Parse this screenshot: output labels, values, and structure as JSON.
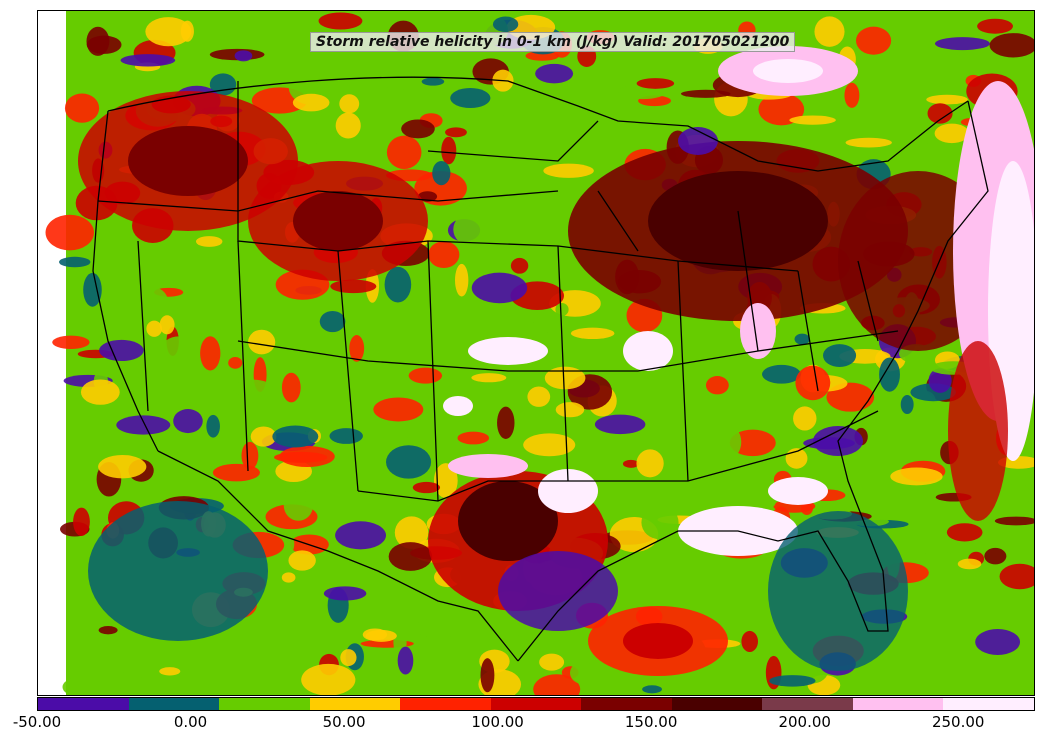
{
  "title": "Storm relative helicity in 0-1 km (J/kg) Valid: 201705021200",
  "colorbar": {
    "colors": [
      "#4b0ca8",
      "#056070",
      "#66cc00",
      "#ffcc00",
      "#ff2200",
      "#cc0000",
      "#7a0000",
      "#4a0000",
      "#7a3a4a",
      "#ffc0f0",
      "#ffeeff"
    ],
    "tick_labels": [
      "-50.00",
      "0.00",
      "50.00",
      "100.00",
      "150.00",
      "200.00",
      "250.00"
    ],
    "tick_values": [
      -50,
      0,
      50,
      100,
      150,
      200,
      250
    ],
    "min": -50,
    "max": 275
  },
  "map": {
    "region": "Continental United States",
    "ocean_color": "#66cc00",
    "boundary_color": "#000000"
  }
}
